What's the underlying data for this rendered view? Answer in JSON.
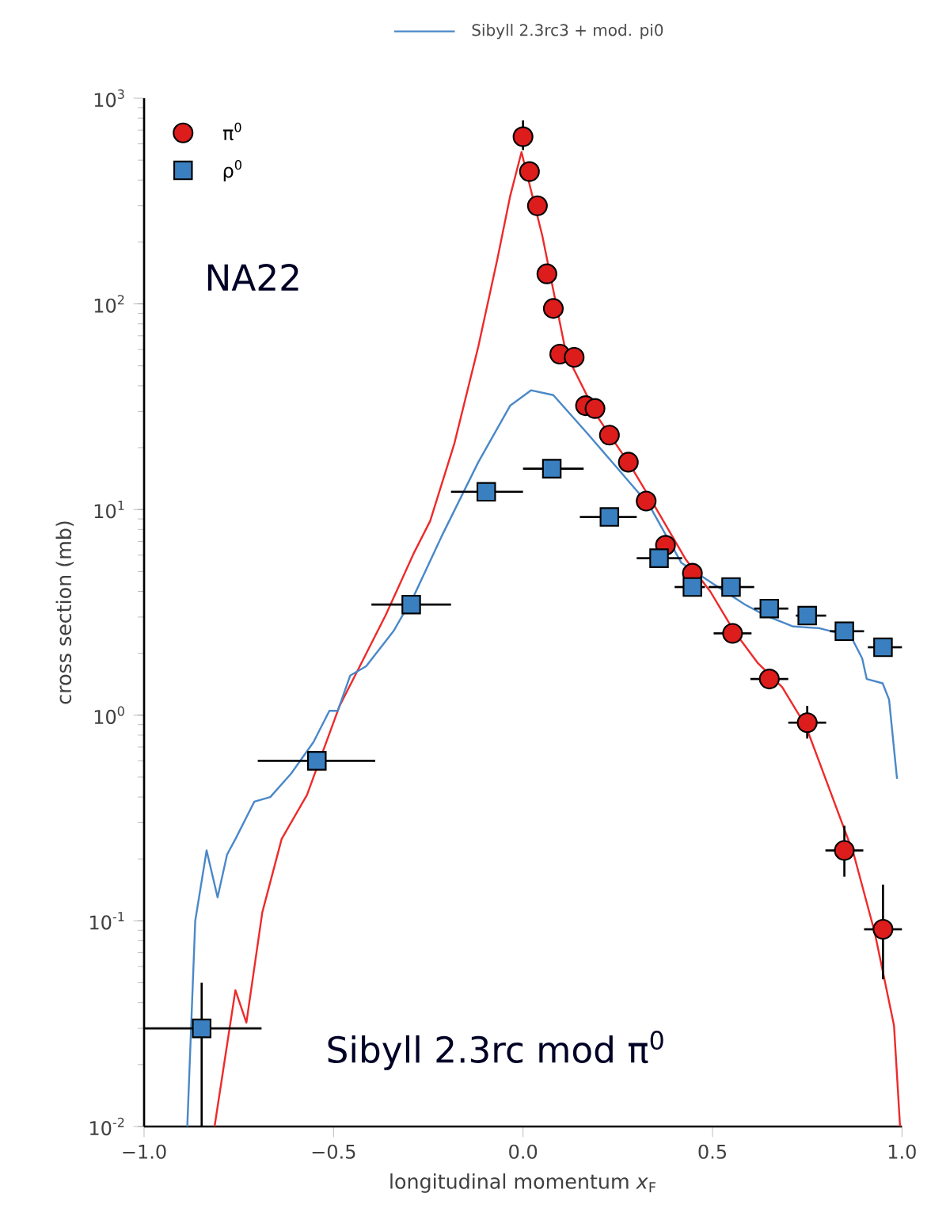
{
  "chart_data": {
    "type": "scatter",
    "xlabel": "longitudinal momentum *x*$_{F}$",
    "ylabel": "cross section (mb)",
    "annotations": [
      "NA22",
      "Sibyll 2.3rc mod π$^{0}$"
    ],
    "log": "y",
    "legend": "top left",
    "xlim": [
      -1,
      1
    ],
    "ylim": [
      0.01,
      1000
    ],
    "xticks": [
      {
        "value": -1,
        "label": "−1.0"
      },
      {
        "value": -0.5,
        "label": "−0.5"
      },
      {
        "value": 0,
        "label": "0.0"
      },
      {
        "value": 0.5,
        "label": "0.5"
      },
      {
        "value": 1,
        "label": "1.0"
      }
    ],
    "yticks": [
      {
        "value": 0.01,
        "label": "10$^{-2}$"
      },
      {
        "value": 0.1,
        "label": "10$^{-1}$"
      },
      {
        "value": 1,
        "label": "10$^{0}$"
      },
      {
        "value": 10,
        "label": "10$^{1}$"
      },
      {
        "value": 100,
        "label": "10$^{2}$"
      },
      {
        "value": 1000,
        "label": "10$^{3}$"
      }
    ],
    "series": [
      {
        "type": "line",
        "color": "#ee2a2a",
        "line_style": "solid",
        "x": [
          -0.814,
          -0.759,
          -0.73,
          -0.688,
          -0.637,
          -0.57,
          -0.485,
          -0.426,
          -0.363,
          -0.287,
          -0.245,
          -0.181,
          -0.118,
          -0.068,
          -0.034,
          -0.004,
          0.051,
          0.114,
          0.198,
          0.283,
          0.346,
          0.43,
          0.494,
          0.557,
          0.62,
          0.684,
          0.747,
          0.81,
          0.873,
          0.928,
          0.979,
          0.995
        ],
        "values": [
          0.01,
          0.046,
          0.032,
          0.11,
          0.25,
          0.41,
          1.1,
          1.8,
          3.05,
          6.2,
          8.8,
          21,
          62,
          164,
          334,
          547,
          214,
          57,
          28,
          16.4,
          10.5,
          5.7,
          4.0,
          2.56,
          1.79,
          1.37,
          0.88,
          0.43,
          0.21,
          0.088,
          0.031,
          0.01
        ]
      },
      {
        "type": "line",
        "name": "Sibyll 2.3rc3 + mod. pi0",
        "color": "#4a88c8",
        "line_style": "solid",
        "x": [
          -0.886,
          -0.865,
          -0.835,
          -0.806,
          -0.781,
          -0.759,
          -0.709,
          -0.667,
          -0.612,
          -0.553,
          -0.511,
          -0.489,
          -0.456,
          -0.414,
          -0.342,
          -0.287,
          -0.215,
          -0.118,
          -0.034,
          0.021,
          0.08,
          0.165,
          0.249,
          0.333,
          0.418,
          0.502,
          0.586,
          0.641,
          0.713,
          0.781,
          0.865,
          0.895,
          0.907,
          0.949,
          0.966,
          0.987
        ],
        "values": [
          0.01,
          0.1,
          0.22,
          0.13,
          0.21,
          0.25,
          0.38,
          0.4,
          0.52,
          0.74,
          1.05,
          1.05,
          1.56,
          1.73,
          2.56,
          3.84,
          7.4,
          17,
          32,
          38,
          36,
          24,
          15.9,
          10.5,
          5.5,
          4.35,
          3.45,
          3.05,
          2.7,
          2.65,
          2.42,
          1.89,
          1.5,
          1.43,
          1.19,
          0.49
        ]
      },
      {
        "name": "π$^{0}$",
        "color": "#dd1c1c",
        "marker": "circle",
        "x": [
          0.0,
          0.017,
          0.038,
          0.063,
          0.08,
          0.097,
          0.135,
          0.165,
          0.19,
          0.228,
          0.278,
          0.325,
          0.376,
          0.447,
          0.553,
          0.65,
          0.75,
          0.848,
          0.95
        ],
        "values": [
          650,
          440,
          300,
          140,
          95,
          57,
          55,
          32,
          31,
          23,
          17,
          11,
          6.7,
          4.9,
          2.5,
          1.5,
          0.92,
          0.22,
          0.091
        ],
        "errors": [
          [
            560,
            780
          ],
          null,
          null,
          null,
          null,
          null,
          null,
          null,
          null,
          null,
          null,
          null,
          null,
          null,
          null,
          null,
          [
            0.77,
            1.11
          ],
          [
            0.164,
            0.29
          ],
          [
            0.052,
            0.15
          ]
        ],
        "xerrors": [
          null,
          null,
          null,
          null,
          null,
          null,
          null,
          null,
          null,
          null,
          null,
          null,
          null,
          null,
          0.05,
          0.05,
          0.05,
          0.05,
          0.05
        ]
      },
      {
        "name": "ρ$^{0}$",
        "color": "#3a80c0",
        "marker": "square",
        "x": [
          -0.848,
          -0.544,
          -0.295,
          -0.097,
          0.076,
          0.228,
          0.359,
          0.447,
          0.549,
          0.65,
          0.75,
          0.848,
          0.95
        ],
        "values": [
          0.03,
          0.6,
          3.45,
          12.2,
          15.8,
          9.2,
          5.8,
          4.2,
          4.2,
          3.3,
          3.05,
          2.56,
          2.14
        ],
        "errors": [
          [
            0.01,
            0.05
          ],
          null,
          null,
          null,
          null,
          null,
          null,
          null,
          null,
          null,
          null,
          null,
          null
        ],
        "xerrors": [
          [
            -1.0,
            -0.69
          ],
          [
            -0.7,
            -0.39
          ],
          [
            -0.4,
            -0.19
          ],
          [
            -0.19,
            0.0
          ],
          [
            0.0,
            0.16
          ],
          [
            0.15,
            0.3
          ],
          [
            0.3,
            0.42
          ],
          [
            0.4,
            0.48
          ],
          [
            0.49,
            0.61
          ],
          [
            0.61,
            0.7
          ],
          [
            0.72,
            0.8
          ],
          [
            0.81,
            0.9
          ],
          [
            0.91,
            1.0
          ]
        ]
      }
    ]
  }
}
